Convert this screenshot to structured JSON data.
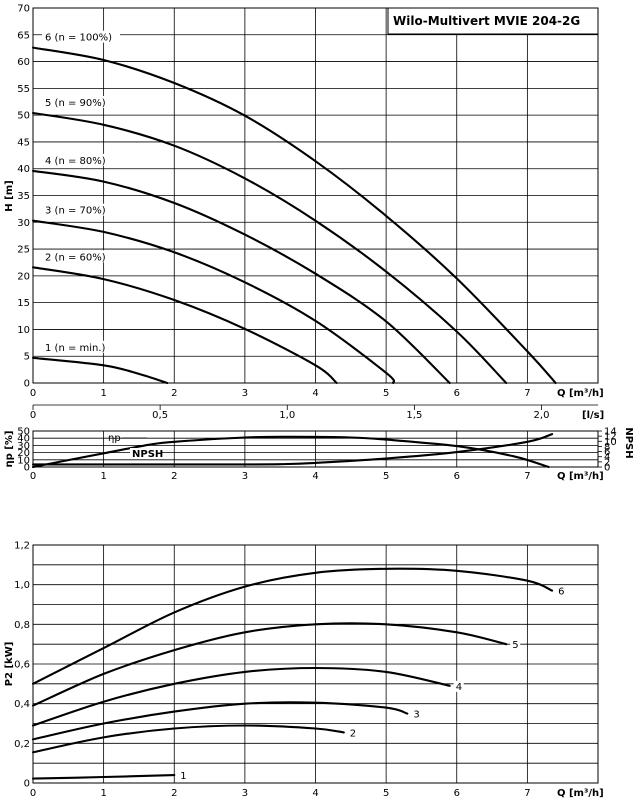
{
  "chart_data": [
    {
      "type": "line",
      "name": "head",
      "title": "Wilo-Multivert MVIE 204-2G",
      "ylabel": "H [m]",
      "xlabel": "Q [m³/h]",
      "xlabel2": "[l/s]",
      "xlim": [
        0,
        8
      ],
      "ylim": [
        0,
        70
      ],
      "xticks": [
        "0",
        "1",
        "2",
        "3",
        "4",
        "5",
        "6",
        "7"
      ],
      "yticks": [
        "0",
        "5",
        "10",
        "15",
        "20",
        "25",
        "30",
        "35",
        "40",
        "45",
        "50",
        "55",
        "60",
        "65",
        "70"
      ],
      "x2ticks": [
        {
          "value": 0,
          "label": "0"
        },
        {
          "value": 0.5,
          "label": "0,5"
        },
        {
          "value": 1.0,
          "label": "1,0"
        },
        {
          "value": 1.5,
          "label": "1,5"
        },
        {
          "value": 2.0,
          "label": "2,0"
        }
      ],
      "series": [
        {
          "name": "1 (n = min.)",
          "x": [
            0,
            1,
            1.5,
            1.9
          ],
          "y": [
            4.7,
            3.3,
            1.7,
            0
          ]
        },
        {
          "name": "2 (n = 60%)",
          "x": [
            0,
            1,
            2,
            3,
            4,
            4.3
          ],
          "y": [
            21.6,
            19.4,
            15.5,
            10.1,
            3.3,
            0
          ]
        },
        {
          "name": "3 (n = 70%)",
          "x": [
            0,
            1,
            2,
            3,
            4,
            5,
            5.1
          ],
          "y": [
            30.3,
            28.2,
            24.4,
            18.8,
            11.6,
            1.9,
            0
          ]
        },
        {
          "name": "4 (n = 80%)",
          "x": [
            0,
            1,
            2,
            3,
            4,
            5,
            5.9
          ],
          "y": [
            39.6,
            37.6,
            33.6,
            27.7,
            20.4,
            11.5,
            0
          ]
        },
        {
          "name": "5 (n = 90%)",
          "x": [
            0,
            1,
            2,
            3,
            4,
            5,
            6,
            6.7
          ],
          "y": [
            50.4,
            48.2,
            44.3,
            38.2,
            30.3,
            20.8,
            9.6,
            0
          ]
        },
        {
          "name": "6 (n = 100%)",
          "x": [
            0,
            1,
            2,
            3,
            4,
            5,
            6,
            7,
            7.4
          ],
          "y": [
            62.6,
            60.3,
            56.0,
            49.9,
            41.4,
            31.2,
            19.5,
            5.9,
            0
          ]
        }
      ]
    },
    {
      "type": "line",
      "name": "efficiency",
      "ylabel": "ηp [%]",
      "ylabel2": "NPSH",
      "xlabel": "Q [m³/h]",
      "xlim": [
        0,
        8
      ],
      "ylim": [
        0,
        50
      ],
      "y2lim": [
        0,
        14
      ],
      "xticks": [
        "0",
        "1",
        "2",
        "3",
        "4",
        "5",
        "6",
        "7"
      ],
      "yticks": [
        "0",
        "10",
        "20",
        "30",
        "40",
        "50"
      ],
      "y2ticks": [
        "0",
        "2",
        "4",
        "6",
        "8",
        "10",
        "12",
        "14"
      ],
      "series": [
        {
          "name": "ηp",
          "axis": "left",
          "x": [
            0,
            1,
            1.65,
            2,
            3,
            3.7,
            4.5,
            5,
            6,
            6.8,
            7.3
          ],
          "y": [
            0,
            19,
            31,
            35,
            41,
            42,
            41,
            38,
            29,
            15,
            0
          ]
        },
        {
          "name": "NPSH",
          "axis": "right",
          "x": [
            0,
            1,
            2,
            3,
            3.5,
            4,
            5,
            6,
            7,
            7.35
          ],
          "y": [
            1.0,
            1.0,
            1.0,
            1.0,
            1.1,
            1.6,
            3.3,
            5.8,
            9.8,
            12.8
          ]
        }
      ]
    },
    {
      "type": "line",
      "name": "power",
      "ylabel": "P2 [kW]",
      "xlabel": "Q [m³/h]",
      "xlim": [
        0,
        8
      ],
      "ylim": [
        0,
        1.2
      ],
      "xticks": [
        "0",
        "1",
        "2",
        "3",
        "4",
        "5",
        "6",
        "7"
      ],
      "yticks": [
        "0",
        "0,2",
        "0,4",
        "0,6",
        "0,8",
        "1,0",
        "1,2"
      ],
      "series": [
        {
          "name": "1",
          "x": [
            0,
            1,
            2
          ],
          "y": [
            0.022,
            0.03,
            0.04
          ]
        },
        {
          "name": "2",
          "x": [
            0,
            1,
            2,
            3,
            4,
            4.4
          ],
          "y": [
            0.155,
            0.23,
            0.275,
            0.29,
            0.275,
            0.255
          ]
        },
        {
          "name": "3",
          "x": [
            0,
            1,
            2,
            3,
            4,
            5,
            5.3
          ],
          "y": [
            0.22,
            0.3,
            0.36,
            0.4,
            0.405,
            0.38,
            0.35
          ]
        },
        {
          "name": "4",
          "x": [
            0,
            1,
            2,
            3,
            4,
            5,
            5.9
          ],
          "y": [
            0.29,
            0.41,
            0.5,
            0.56,
            0.58,
            0.56,
            0.49
          ]
        },
        {
          "name": "5",
          "x": [
            0,
            1,
            2,
            3,
            4,
            5,
            6,
            6.7
          ],
          "y": [
            0.39,
            0.55,
            0.67,
            0.76,
            0.8,
            0.8,
            0.76,
            0.7
          ]
        },
        {
          "name": "6",
          "x": [
            0,
            1,
            2,
            3,
            4,
            5,
            6,
            7,
            7.35
          ],
          "y": [
            0.5,
            0.68,
            0.86,
            0.99,
            1.06,
            1.08,
            1.07,
            1.02,
            0.97
          ]
        }
      ]
    }
  ]
}
